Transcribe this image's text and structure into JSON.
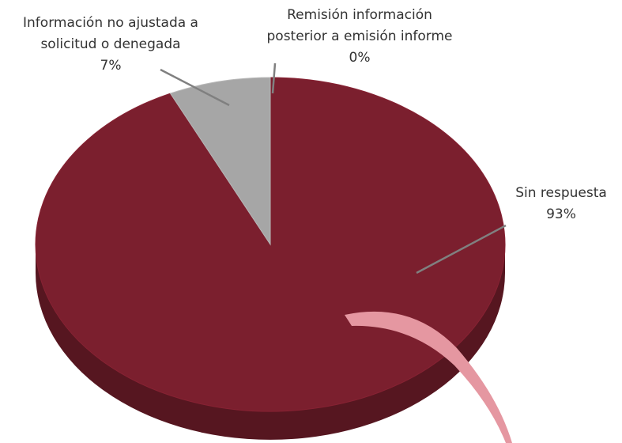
{
  "chart_data": {
    "type": "pie",
    "categories": [
      "Sin respuesta",
      "Información no ajustada a solicitud o denegada",
      "Remisión información posterior a emisión informe"
    ],
    "values": [
      93,
      7,
      0
    ],
    "value_labels": [
      "93%",
      "7%",
      "0%"
    ],
    "colors": [
      "#7b1f2e",
      "#a6a6a6",
      "#e597a1"
    ]
  }
}
